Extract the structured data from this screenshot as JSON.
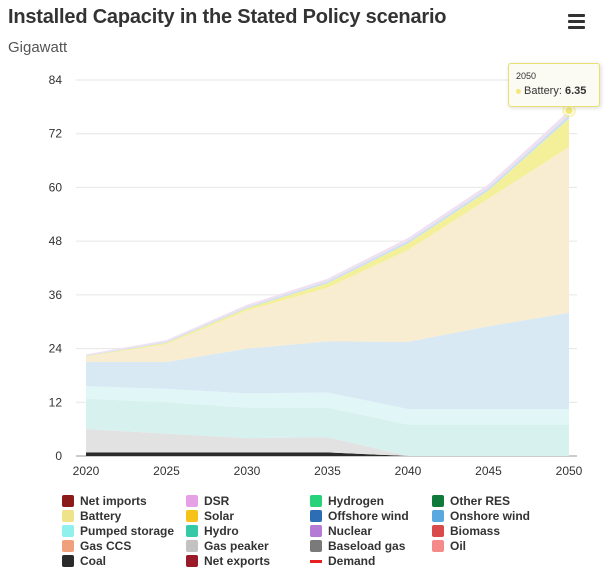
{
  "header": {
    "title": "Installed Capacity in the Stated Policy scenario",
    "subtitle": "Gigawatt"
  },
  "menu": {
    "icon": "hamburger-menu-icon"
  },
  "tooltip": {
    "year": "2050",
    "series": "Battery",
    "value": "6.35",
    "value_label": "6.35",
    "series_label": "Battery: "
  },
  "chart_data": {
    "type": "area",
    "stacked": true,
    "x": [
      2020,
      2025,
      2030,
      2035,
      2040,
      2045,
      2050
    ],
    "x_tick_labels": [
      "2020",
      "2025",
      "2030",
      "2035",
      "2040",
      "2045",
      "2050"
    ],
    "y_ticks": [
      0,
      12,
      24,
      36,
      48,
      60,
      72,
      84
    ],
    "y_tick_labels": [
      "0",
      "12",
      "24",
      "36",
      "48",
      "60",
      "72",
      "84"
    ],
    "ylim": [
      0,
      84
    ],
    "ylabel": "Gigawatt",
    "grid": true,
    "legend_position": "bottom",
    "series": [
      {
        "name": "Coal",
        "color": "#2b2b2b",
        "values": [
          0.8,
          0.8,
          0.8,
          0.8,
          0,
          0,
          0
        ]
      },
      {
        "name": "Gas peaker",
        "color": "#e2e2e2",
        "values": [
          5.2,
          4.2,
          3.2,
          3.4,
          0,
          0,
          0
        ]
      },
      {
        "name": "Hydro",
        "color": "#d7f1ee",
        "values": [
          6.8,
          7.0,
          6.8,
          6.6,
          7.0,
          7.0,
          7.0
        ]
      },
      {
        "name": "Pumped storage",
        "color": "#e1f6f6",
        "values": [
          2.8,
          3.0,
          3.2,
          3.4,
          3.5,
          3.5,
          3.5
        ]
      },
      {
        "name": "Onshore wind",
        "color": "#d9e9f4",
        "values": [
          5.4,
          6.0,
          10.0,
          11.4,
          15.0,
          18.5,
          21.5
        ]
      },
      {
        "name": "Solar",
        "color": "#f8ecd1",
        "values": [
          1.2,
          4.0,
          8.5,
          12.0,
          20.5,
          28.5,
          37.0
        ]
      },
      {
        "name": "Battery",
        "color": "#f4f09a",
        "values": [
          0.1,
          0.3,
          0.5,
          1.0,
          1.5,
          1.8,
          6.35
        ]
      },
      {
        "name": "Offshore wind",
        "color": "#cde0ef",
        "values": [
          0.1,
          0.2,
          0.3,
          0.4,
          0.5,
          0.6,
          0.8
        ]
      },
      {
        "name": "DSR",
        "color": "#efe1f2",
        "values": [
          0.3,
          0.4,
          0.5,
          0.6,
          0.7,
          0.8,
          1.0
        ]
      }
    ]
  },
  "legend": [
    {
      "label": "Net imports",
      "color": "#8b1a1a",
      "type": "box"
    },
    {
      "label": "DSR",
      "color": "#e6a0e6",
      "type": "box"
    },
    {
      "label": "Hydrogen",
      "color": "#27d37a",
      "type": "box"
    },
    {
      "label": "Other RES",
      "color": "#0f7a3a",
      "type": "box"
    },
    {
      "label": "Battery",
      "color": "#efe38a",
      "type": "box"
    },
    {
      "label": "Solar",
      "color": "#f7c21a",
      "type": "box"
    },
    {
      "label": "Offshore wind",
      "color": "#2d6db5",
      "type": "box"
    },
    {
      "label": "Onshore wind",
      "color": "#5aa8e0",
      "type": "box"
    },
    {
      "label": "Pumped storage",
      "color": "#8ff0ee",
      "type": "box"
    },
    {
      "label": "Hydro",
      "color": "#33c9a6",
      "type": "box"
    },
    {
      "label": "Nuclear",
      "color": "#b57ad6",
      "type": "box"
    },
    {
      "label": "Biomass",
      "color": "#d94a4a",
      "type": "box"
    },
    {
      "label": "Gas CCS",
      "color": "#f0a07a",
      "type": "box"
    },
    {
      "label": "Gas peaker",
      "color": "#c2c2c2",
      "type": "box"
    },
    {
      "label": "Baseload gas",
      "color": "#7a7a7a",
      "type": "box"
    },
    {
      "label": "Oil",
      "color": "#f58a8a",
      "type": "box"
    },
    {
      "label": "Coal",
      "color": "#2a2a2a",
      "type": "box"
    },
    {
      "label": "Net exports",
      "color": "#9a1a2a",
      "type": "box"
    },
    {
      "label": "Demand",
      "color": "#e62020",
      "type": "line"
    }
  ]
}
